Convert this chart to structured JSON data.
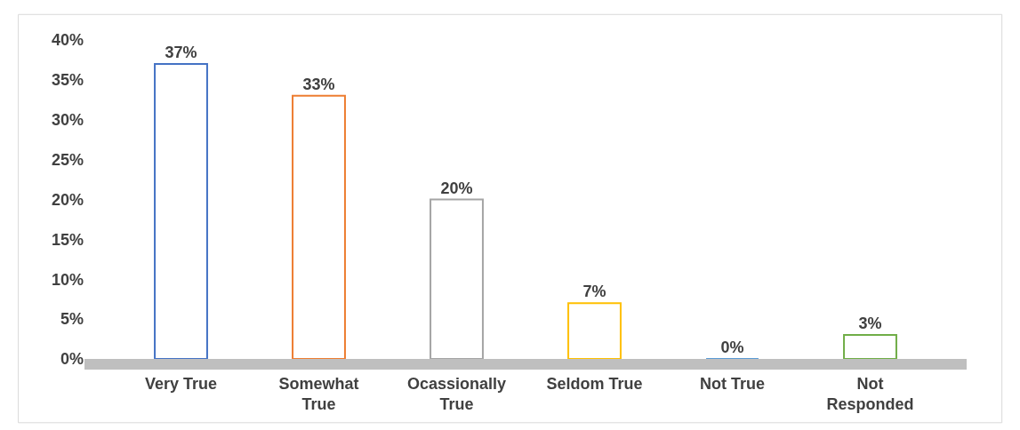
{
  "chart_data": {
    "type": "bar",
    "categories": [
      "Very True",
      "Somewhat True",
      "Ocassionally True",
      "Seldom True",
      "Not True",
      "Not Responded"
    ],
    "values": [
      37,
      33,
      20,
      7,
      0,
      3
    ],
    "colors": [
      "#4472c4",
      "#ed7d31",
      "#a5a5a5",
      "#ffc000",
      "#5b9bd5",
      "#70ad47"
    ],
    "value_labels": [
      "37%",
      "33%",
      "20%",
      "7%",
      "0%",
      "3%"
    ],
    "ylim": [
      0,
      40
    ],
    "yticks": [
      {
        "value": 0,
        "label": "0%"
      },
      {
        "value": 5,
        "label": "5%"
      },
      {
        "value": 10,
        "label": "10%"
      },
      {
        "value": 15,
        "label": "15%"
      },
      {
        "value": 20,
        "label": "20%"
      },
      {
        "value": 25,
        "label": "25%"
      },
      {
        "value": 30,
        "label": "30%"
      },
      {
        "value": 35,
        "label": "35%"
      },
      {
        "value": 40,
        "label": "40%"
      }
    ],
    "grid": false
  }
}
